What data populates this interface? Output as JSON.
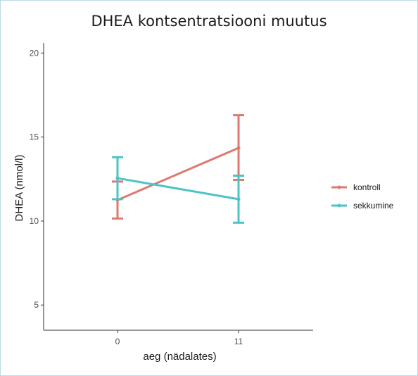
{
  "chart_data": {
    "type": "line",
    "title": "DHEA kontsentratsiooni muutus",
    "xlabel": "aeg (nädalates)",
    "ylabel": "DHEA (nmol/l)",
    "categories": [
      "0",
      "11"
    ],
    "ylim": [
      3.5,
      20.6
    ],
    "yticks": [
      5,
      10,
      15,
      20
    ],
    "grid": false,
    "legend_position": "right",
    "series": [
      {
        "name": "kontroll",
        "color": "#e0786f",
        "values": [
          11.25,
          14.35
        ],
        "error_low": [
          10.15,
          12.45
        ],
        "error_high": [
          12.35,
          16.3
        ]
      },
      {
        "name": "sekkumine",
        "color": "#4cc3c4",
        "values": [
          12.55,
          11.3
        ],
        "error_low": [
          11.3,
          9.9
        ],
        "error_high": [
          13.8,
          12.7
        ]
      }
    ]
  }
}
